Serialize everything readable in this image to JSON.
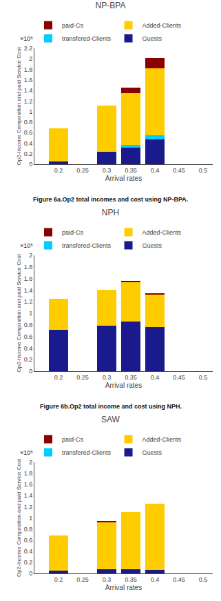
{
  "chart_data": [
    {
      "type": "bar",
      "title": "NP-BPA",
      "caption": "Figure 6a.Op2 total incomes and cost using NP-BPA.",
      "annotations": [
        "×10⁵"
      ],
      "x": [
        0.2,
        0.3,
        0.35,
        0.4
      ],
      "series": [
        {
          "name": "Guests",
          "color": "#1a1a8c",
          "values": [
            0.05,
            0.23,
            0.32,
            0.47
          ]
        },
        {
          "name": "transfered-Clients",
          "color": "#00ccff",
          "values": [
            0.0,
            0.0,
            0.05,
            0.08
          ]
        },
        {
          "name": "Added-Clients",
          "color": "#ffcc00",
          "values": [
            0.63,
            0.88,
            0.98,
            1.27
          ]
        },
        {
          "name": "paid-Cs",
          "color": "#8b0000",
          "values": [
            0.0,
            0.0,
            0.1,
            0.2
          ]
        }
      ],
      "xlabel": "Arrival rates",
      "ylabel": "Op2-Income Composition and paid Service Cost",
      "xlim": [
        0.15,
        0.52
      ],
      "xticks": [
        0.2,
        0.25,
        0.3,
        0.35,
        0.4,
        0.45,
        0.5
      ],
      "ylim": [
        0,
        2.2
      ],
      "yticks": [
        0,
        0.2,
        0.4,
        0.6,
        0.8,
        1,
        1.2,
        1.4,
        1.6,
        1.8,
        2,
        2.2
      ],
      "stacked": true,
      "grid": false,
      "legend": "top"
    },
    {
      "type": "bar",
      "title": "NPH",
      "caption": "Figure 6b.Op2 total income and cost using NPH.",
      "annotations": [
        "×10⁵"
      ],
      "x": [
        0.2,
        0.3,
        0.35,
        0.4
      ],
      "series": [
        {
          "name": "Guests",
          "color": "#1a1a8c",
          "values": [
            0.72,
            0.78,
            0.86,
            0.76
          ]
        },
        {
          "name": "transfered-Clients",
          "color": "#00ccff",
          "values": [
            0.0,
            0.0,
            0.0,
            0.0
          ]
        },
        {
          "name": "Added-Clients",
          "color": "#ffcc00",
          "values": [
            0.53,
            0.63,
            0.68,
            0.57
          ]
        },
        {
          "name": "paid-Cs",
          "color": "#8b0000",
          "values": [
            0.0,
            0.0,
            0.02,
            0.02
          ]
        }
      ],
      "xlabel": "Arrival rates",
      "ylabel": "Op2-Income Composition and paid Service Cost",
      "xlim": [
        0.15,
        0.52
      ],
      "xticks": [
        0.2,
        0.25,
        0.3,
        0.35,
        0.4,
        0.45,
        0.5
      ],
      "ylim": [
        0,
        2.0
      ],
      "yticks": [
        0,
        0.2,
        0.4,
        0.6,
        0.8,
        1,
        1.2,
        1.4,
        1.6,
        1.8,
        2
      ],
      "stacked": true,
      "grid": false,
      "legend": "top"
    },
    {
      "type": "bar",
      "title": "SAW",
      "annotations": [
        "×10⁵"
      ],
      "x": [
        0.2,
        0.3,
        0.35,
        0.4
      ],
      "series": [
        {
          "name": "Guests",
          "color": "#1a1a8c",
          "values": [
            0.05,
            0.07,
            0.08,
            0.06
          ]
        },
        {
          "name": "transfered-Clients",
          "color": "#00ccff",
          "values": [
            0.0,
            0.0,
            0.0,
            0.0
          ]
        },
        {
          "name": "Added-Clients",
          "color": "#ffcc00",
          "values": [
            0.63,
            0.86,
            1.02,
            1.19
          ]
        },
        {
          "name": "paid-Cs",
          "color": "#8b0000",
          "values": [
            0.0,
            0.01,
            0.0,
            0.0
          ]
        }
      ],
      "xlabel": "Arrival rates",
      "ylabel": "Op2-Income Composition and paid Service Cost",
      "xlim": [
        0.15,
        0.52
      ],
      "xticks": [
        0.2,
        0.25,
        0.3,
        0.35,
        0.4,
        0.45,
        0.5
      ],
      "ylim": [
        0,
        2.0
      ],
      "yticks": [
        0,
        0.2,
        0.4,
        0.6,
        0.8,
        1,
        1.2,
        1.4,
        1.6,
        1.8,
        2
      ],
      "stacked": true,
      "grid": false,
      "legend": "top"
    }
  ]
}
